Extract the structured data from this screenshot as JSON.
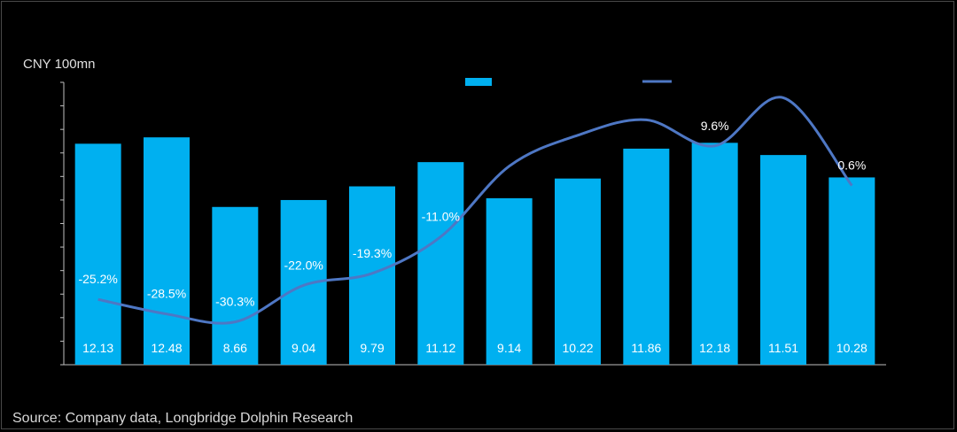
{
  "unit_label": "CNY 100mn",
  "source_note": "Source: Company data, Longbridge Dolphin Research",
  "colors": {
    "bar": "#00b0f0",
    "line": "#4e77c4",
    "background": "#000000"
  },
  "chart_data": {
    "type": "bar",
    "grid": false,
    "legend_placement": "top-right",
    "ylabel": "CNY 100mn",
    "ylim": [
      0,
      15.5
    ],
    "y2lim": [
      -40,
      24
    ],
    "series": [
      {
        "kind": "bar",
        "values": [
          12.13,
          12.48,
          8.66,
          9.04,
          9.79,
          11.12,
          9.14,
          10.22,
          11.86,
          12.18,
          11.51,
          10.28
        ],
        "labels": [
          "12.13",
          "12.48",
          "8.66",
          "9.04",
          "9.79",
          "11.12",
          "9.14",
          "10.22",
          "11.86",
          "12.18",
          "11.51",
          "10.28"
        ]
      },
      {
        "kind": "line",
        "values": [
          -25.2,
          -28.5,
          -30.3,
          -22.0,
          -19.3,
          -11.0,
          5.0,
          12.0,
          15.5,
          9.6,
          20.5,
          0.6
        ],
        "labels": [
          "-25.2%",
          "-28.5%",
          "-30.3%",
          "-22.0%",
          "-19.3%",
          "-11.0%",
          "",
          "",
          "",
          "9.6%",
          "",
          "0.6%"
        ]
      }
    ]
  }
}
